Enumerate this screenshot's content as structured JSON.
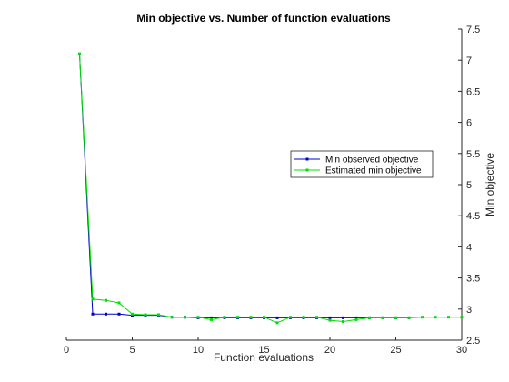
{
  "chart_data": {
    "type": "line",
    "title": "Min objective vs. Number of function evaluations",
    "xlabel": "Function evaluations",
    "ylabel": "Min objective",
    "xlim": [
      0,
      30
    ],
    "ylim": [
      2.5,
      7.5
    ],
    "y_axis_side": "right",
    "grid": false,
    "legend_position": "right",
    "xticks": [
      "0",
      "5",
      "10",
      "15",
      "20",
      "25",
      "30"
    ],
    "yticks": [
      "2.5",
      "3",
      "3.5",
      "4",
      "4.5",
      "5",
      "5.5",
      "6",
      "6.5",
      "7",
      "7.5"
    ],
    "series": [
      {
        "name": "Min observed objective",
        "color": "#0000cc",
        "marker": "square",
        "line_style": "solid",
        "x": [
          1,
          2,
          3,
          4,
          5,
          6,
          7,
          8,
          9,
          10,
          11,
          12,
          13,
          14,
          15,
          16,
          17,
          18,
          19,
          20,
          21,
          22,
          23,
          24,
          25,
          26
        ],
        "y": [
          7.1,
          2.92,
          2.92,
          2.92,
          2.9,
          2.9,
          2.9,
          2.87,
          2.87,
          2.86,
          2.86,
          2.86,
          2.86,
          2.86,
          2.86,
          2.86,
          2.86,
          2.86,
          2.86,
          2.86,
          2.86,
          2.86,
          2.86,
          2.86,
          2.86,
          2.86
        ]
      },
      {
        "name": "Estimated min objective",
        "color": "#00e000",
        "marker": "square",
        "line_style": "solid",
        "x": [
          1,
          2,
          3,
          4,
          5,
          6,
          7,
          8,
          9,
          10,
          11,
          12,
          13,
          14,
          15,
          16,
          17,
          18,
          19,
          20,
          21,
          22,
          23,
          24,
          25,
          26,
          27,
          28,
          29,
          30
        ],
        "y": [
          7.1,
          3.16,
          3.14,
          3.1,
          2.92,
          2.91,
          2.91,
          2.87,
          2.87,
          2.87,
          2.83,
          2.87,
          2.87,
          2.87,
          2.87,
          2.78,
          2.87,
          2.87,
          2.87,
          2.82,
          2.8,
          2.83,
          2.86,
          2.86,
          2.86,
          2.86,
          2.87,
          2.87,
          2.87,
          2.87
        ]
      }
    ]
  }
}
